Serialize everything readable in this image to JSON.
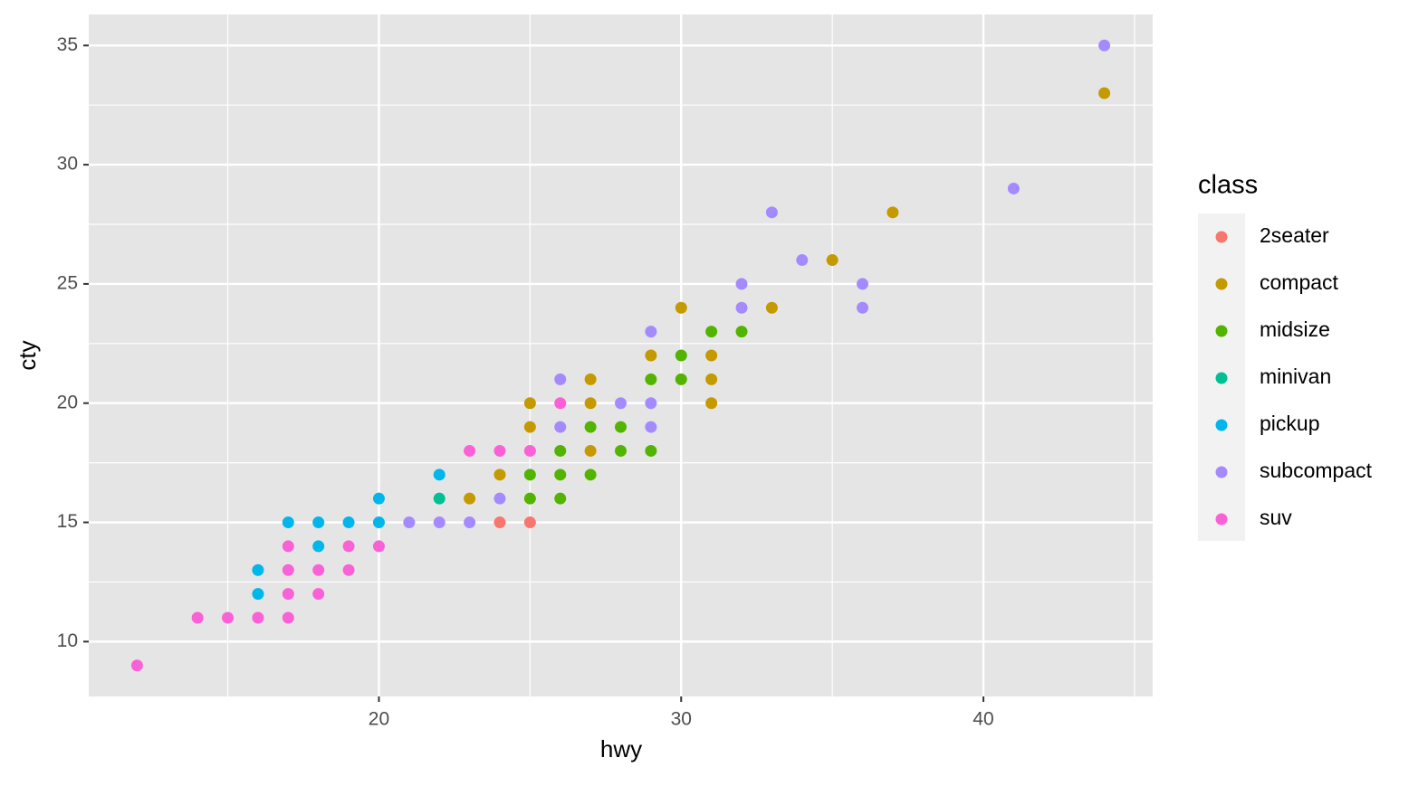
{
  "chart_data": {
    "type": "scatter",
    "x_label": "hwy",
    "y_label": "cty",
    "legend_title": "class",
    "legend_position": "right",
    "grid": true,
    "xlim": [
      10.4,
      45.6
    ],
    "ylim": [
      7.7,
      36.3
    ],
    "xticks": [
      20,
      30,
      40
    ],
    "yticks": [
      10,
      15,
      20,
      25,
      30,
      35
    ],
    "series": [
      {
        "name": "2seater",
        "color": "#F8766D",
        "x": [
          24,
          25
        ],
        "y": [
          15,
          15
        ]
      },
      {
        "name": "compact",
        "color": "#C49A00",
        "x": [
          25,
          25,
          27,
          27,
          27,
          24,
          23,
          29,
          30,
          31,
          31,
          31,
          33,
          35,
          37,
          44
        ],
        "y": [
          20,
          19,
          21,
          20,
          18,
          17,
          16,
          22,
          24,
          22,
          21,
          20,
          24,
          26,
          28,
          33
        ]
      },
      {
        "name": "midsize",
        "color": "#53B400",
        "x": [
          25,
          25,
          26,
          26,
          26,
          27,
          27,
          28,
          28,
          29,
          29,
          30,
          30,
          31,
          32
        ],
        "y": [
          17,
          16,
          18,
          17,
          16,
          19,
          17,
          19,
          18,
          21,
          18,
          22,
          21,
          23,
          23
        ]
      },
      {
        "name": "minivan",
        "color": "#00C094",
        "x": [
          22
        ],
        "y": [
          16
        ]
      },
      {
        "name": "pickup",
        "color": "#00B6EB",
        "x": [
          16,
          16,
          17,
          18,
          18,
          19,
          20,
          20,
          22
        ],
        "y": [
          13,
          12,
          15,
          15,
          14,
          15,
          16,
          15,
          17
        ]
      },
      {
        "name": "subcompact",
        "color": "#A58AFF",
        "x": [
          44,
          41,
          33,
          34,
          36,
          36,
          32,
          32,
          29,
          29,
          29,
          28,
          26,
          26,
          24,
          23,
          22,
          21
        ],
        "y": [
          35,
          29,
          28,
          26,
          25,
          24,
          25,
          24,
          23,
          20,
          19,
          20,
          21,
          19,
          16,
          15,
          15,
          15
        ]
      },
      {
        "name": "suv",
        "color": "#FB61D7",
        "x": [
          12,
          14,
          15,
          16,
          17,
          17,
          17,
          17,
          18,
          18,
          19,
          19,
          20,
          23,
          24,
          25,
          26
        ],
        "y": [
          9,
          11,
          11,
          11,
          11,
          12,
          13,
          14,
          13,
          12,
          14,
          13,
          14,
          18,
          18,
          18,
          20
        ]
      }
    ]
  }
}
